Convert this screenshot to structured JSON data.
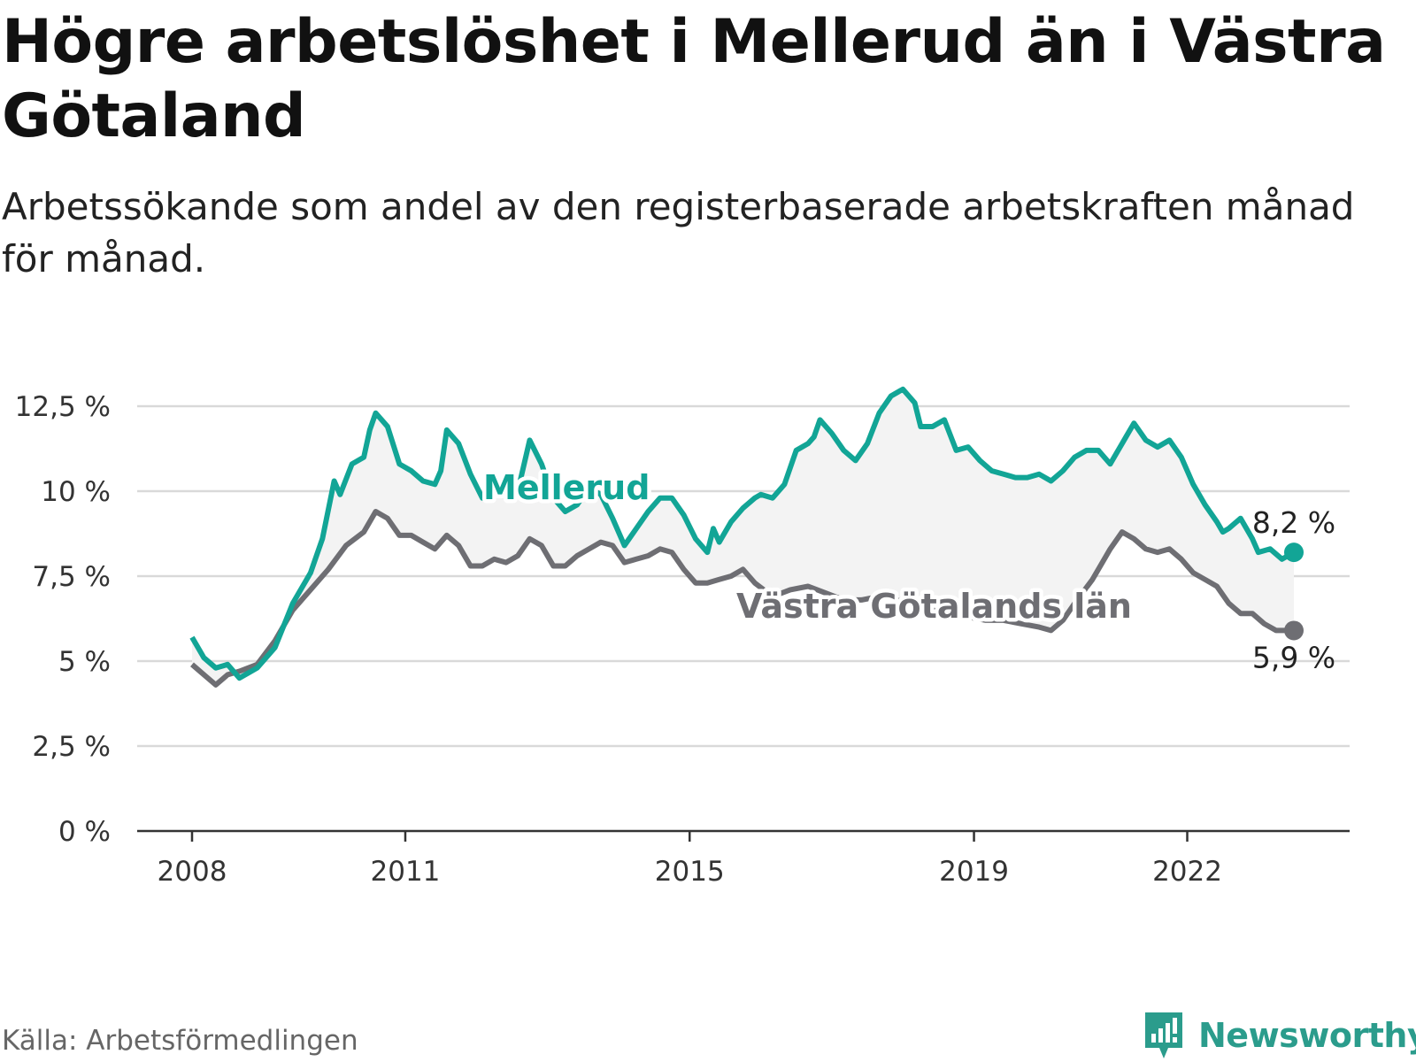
{
  "title": "Högre arbetslöshet i Mellerud än i Västra Götaland",
  "subtitle": "Arbetssökande som andel av den registerbaserade arbetskraften månad för månad.",
  "source": "Källa: Arbetsförmedlingen",
  "brand": {
    "name": "Newsworthy",
    "icon": "newsworthy-logo-icon"
  },
  "colors": {
    "mellerud": "#12a596",
    "vg": "#6e6e73",
    "gap_fill": "#f3f3f3",
    "grid": "#d9d9d9",
    "axis": "#333333"
  },
  "chart_data": {
    "type": "line",
    "title": "Högre arbetslöshet i Mellerud än i Västra Götaland",
    "xlabel": "",
    "ylabel": "",
    "ylim": [
      0,
      12.5
    ],
    "yticks": [
      "0 %",
      "2,5 %",
      "5 %",
      "7,5 %",
      "10 %",
      "12,5 %"
    ],
    "xticks": [
      "2008",
      "2011",
      "2015",
      "2019",
      "2022"
    ],
    "grid": true,
    "legend": "inline labels",
    "series": [
      {
        "name": "Mellerud",
        "end_label": "8,2 %",
        "points": [
          [
            "2008-01",
            5.7
          ],
          [
            "2008-03",
            5.1
          ],
          [
            "2008-05",
            4.8
          ],
          [
            "2008-07",
            4.9
          ],
          [
            "2008-09",
            4.5
          ],
          [
            "2008-12",
            4.8
          ],
          [
            "2009-03",
            5.4
          ],
          [
            "2009-06",
            6.7
          ],
          [
            "2009-09",
            7.6
          ],
          [
            "2009-11",
            8.6
          ],
          [
            "2010-01",
            10.3
          ],
          [
            "2010-02",
            9.9
          ],
          [
            "2010-04",
            10.8
          ],
          [
            "2010-06",
            11.0
          ],
          [
            "2010-07",
            11.8
          ],
          [
            "2010-08",
            12.3
          ],
          [
            "2010-10",
            11.9
          ],
          [
            "2010-12",
            10.8
          ],
          [
            "2011-02",
            10.6
          ],
          [
            "2011-04",
            10.3
          ],
          [
            "2011-06",
            10.2
          ],
          [
            "2011-07",
            10.6
          ],
          [
            "2011-08",
            11.8
          ],
          [
            "2011-10",
            11.4
          ],
          [
            "2011-12",
            10.5
          ],
          [
            "2012-02",
            9.8
          ],
          [
            "2012-04",
            9.9
          ],
          [
            "2012-06",
            10.3
          ],
          [
            "2012-08",
            10.0
          ],
          [
            "2012-10",
            11.5
          ],
          [
            "2012-12",
            10.8
          ],
          [
            "2013-02",
            9.8
          ],
          [
            "2013-04",
            9.4
          ],
          [
            "2013-06",
            9.6
          ],
          [
            "2013-08",
            10.1
          ],
          [
            "2013-10",
            9.9
          ],
          [
            "2013-12",
            9.2
          ],
          [
            "2014-02",
            8.4
          ],
          [
            "2014-04",
            8.9
          ],
          [
            "2014-06",
            9.4
          ],
          [
            "2014-08",
            9.8
          ],
          [
            "2014-10",
            9.8
          ],
          [
            "2014-12",
            9.3
          ],
          [
            "2015-02",
            8.6
          ],
          [
            "2015-04",
            8.2
          ],
          [
            "2015-05",
            8.9
          ],
          [
            "2015-06",
            8.5
          ],
          [
            "2015-08",
            9.1
          ],
          [
            "2015-10",
            9.5
          ],
          [
            "2015-12",
            9.8
          ],
          [
            "2016-01",
            9.9
          ],
          [
            "2016-03",
            9.8
          ],
          [
            "2016-05",
            10.2
          ],
          [
            "2016-07",
            11.2
          ],
          [
            "2016-09",
            11.4
          ],
          [
            "2016-10",
            11.6
          ],
          [
            "2016-11",
            12.1
          ],
          [
            "2017-01",
            11.7
          ],
          [
            "2017-03",
            11.2
          ],
          [
            "2017-05",
            10.9
          ],
          [
            "2017-07",
            11.4
          ],
          [
            "2017-09",
            12.3
          ],
          [
            "2017-11",
            12.8
          ],
          [
            "2018-01",
            13.0
          ],
          [
            "2018-03",
            12.6
          ],
          [
            "2018-04",
            11.9
          ],
          [
            "2018-06",
            11.9
          ],
          [
            "2018-08",
            12.1
          ],
          [
            "2018-10",
            11.2
          ],
          [
            "2018-12",
            11.3
          ],
          [
            "2019-02",
            10.9
          ],
          [
            "2019-04",
            10.6
          ],
          [
            "2019-06",
            10.5
          ],
          [
            "2019-08",
            10.4
          ],
          [
            "2019-10",
            10.4
          ],
          [
            "2019-12",
            10.5
          ],
          [
            "2020-02",
            10.3
          ],
          [
            "2020-04",
            10.6
          ],
          [
            "2020-06",
            11.0
          ],
          [
            "2020-08",
            11.2
          ],
          [
            "2020-10",
            11.2
          ],
          [
            "2020-12",
            10.8
          ],
          [
            "2021-02",
            11.4
          ],
          [
            "2021-04",
            12.0
          ],
          [
            "2021-06",
            11.5
          ],
          [
            "2021-08",
            11.3
          ],
          [
            "2021-10",
            11.5
          ],
          [
            "2021-12",
            11.0
          ],
          [
            "2022-02",
            10.2
          ],
          [
            "2022-04",
            9.6
          ],
          [
            "2022-06",
            9.1
          ],
          [
            "2022-07",
            8.8
          ],
          [
            "2022-08",
            8.9
          ],
          [
            "2022-10",
            9.2
          ],
          [
            "2022-12",
            8.6
          ],
          [
            "2023-01",
            8.2
          ],
          [
            "2023-03",
            8.3
          ],
          [
            "2023-05",
            8.0
          ],
          [
            "2023-07",
            8.2
          ]
        ]
      },
      {
        "name": "Västra Götalands län",
        "end_label": "5,9 %",
        "points": [
          [
            "2008-01",
            4.9
          ],
          [
            "2008-03",
            4.6
          ],
          [
            "2008-05",
            4.3
          ],
          [
            "2008-07",
            4.6
          ],
          [
            "2008-09",
            4.7
          ],
          [
            "2008-12",
            4.9
          ],
          [
            "2009-03",
            5.6
          ],
          [
            "2009-06",
            6.5
          ],
          [
            "2009-09",
            7.1
          ],
          [
            "2009-12",
            7.7
          ],
          [
            "2010-03",
            8.4
          ],
          [
            "2010-06",
            8.8
          ],
          [
            "2010-08",
            9.4
          ],
          [
            "2010-10",
            9.2
          ],
          [
            "2010-12",
            8.7
          ],
          [
            "2011-02",
            8.7
          ],
          [
            "2011-04",
            8.5
          ],
          [
            "2011-06",
            8.3
          ],
          [
            "2011-08",
            8.7
          ],
          [
            "2011-10",
            8.4
          ],
          [
            "2011-12",
            7.8
          ],
          [
            "2012-02",
            7.8
          ],
          [
            "2012-04",
            8.0
          ],
          [
            "2012-06",
            7.9
          ],
          [
            "2012-08",
            8.1
          ],
          [
            "2012-10",
            8.6
          ],
          [
            "2012-12",
            8.4
          ],
          [
            "2013-02",
            7.8
          ],
          [
            "2013-04",
            7.8
          ],
          [
            "2013-06",
            8.1
          ],
          [
            "2013-08",
            8.3
          ],
          [
            "2013-10",
            8.5
          ],
          [
            "2013-12",
            8.4
          ],
          [
            "2014-02",
            7.9
          ],
          [
            "2014-04",
            8.0
          ],
          [
            "2014-06",
            8.1
          ],
          [
            "2014-08",
            8.3
          ],
          [
            "2014-10",
            8.2
          ],
          [
            "2014-12",
            7.7
          ],
          [
            "2015-02",
            7.3
          ],
          [
            "2015-04",
            7.3
          ],
          [
            "2015-06",
            7.4
          ],
          [
            "2015-08",
            7.5
          ],
          [
            "2015-10",
            7.7
          ],
          [
            "2015-12",
            7.3
          ],
          [
            "2016-03",
            6.9
          ],
          [
            "2016-06",
            7.1
          ],
          [
            "2016-09",
            7.2
          ],
          [
            "2016-12",
            7.0
          ],
          [
            "2017-03",
            6.8
          ],
          [
            "2017-06",
            6.8
          ],
          [
            "2017-09",
            6.9
          ],
          [
            "2017-12",
            6.8
          ],
          [
            "2018-03",
            6.6
          ],
          [
            "2018-06",
            6.5
          ],
          [
            "2018-09",
            6.4
          ],
          [
            "2018-12",
            6.3
          ],
          [
            "2019-03",
            6.2
          ],
          [
            "2019-06",
            6.2
          ],
          [
            "2019-09",
            6.1
          ],
          [
            "2019-12",
            6.0
          ],
          [
            "2020-02",
            5.9
          ],
          [
            "2020-04",
            6.2
          ],
          [
            "2020-06",
            6.7
          ],
          [
            "2020-09",
            7.4
          ],
          [
            "2020-12",
            8.3
          ],
          [
            "2021-02",
            8.8
          ],
          [
            "2021-04",
            8.6
          ],
          [
            "2021-06",
            8.3
          ],
          [
            "2021-08",
            8.2
          ],
          [
            "2021-10",
            8.3
          ],
          [
            "2021-12",
            8.0
          ],
          [
            "2022-02",
            7.6
          ],
          [
            "2022-04",
            7.4
          ],
          [
            "2022-06",
            7.2
          ],
          [
            "2022-08",
            6.7
          ],
          [
            "2022-10",
            6.4
          ],
          [
            "2022-12",
            6.4
          ],
          [
            "2023-02",
            6.1
          ],
          [
            "2023-04",
            5.9
          ],
          [
            "2023-07",
            5.9
          ]
        ]
      }
    ]
  }
}
